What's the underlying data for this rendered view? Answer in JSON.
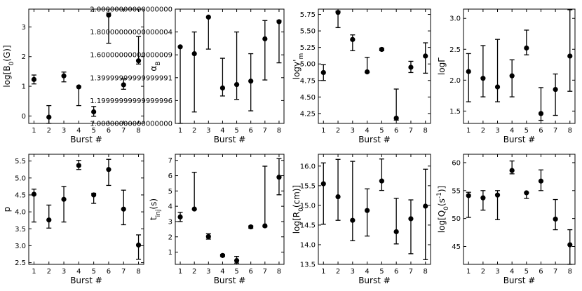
{
  "chart_data": [
    {
      "type": "scatter",
      "ylabel": "log[B$_0$(G)]",
      "xlabel": "Burst #",
      "ylim": [
        -0.25,
        3.6
      ],
      "yticks": [
        0,
        1,
        2,
        3
      ],
      "x": [
        1,
        2,
        3,
        4,
        5,
        6,
        7,
        8
      ],
      "y": [
        1.23,
        -0.04,
        1.35,
        0.98,
        0.14,
        3.4,
        1.05,
        1.86
      ],
      "y_low": [
        1.08,
        -0.25,
        1.15,
        0.35,
        -0.01,
        2.45,
        0.9,
        1.75
      ],
      "y_high": [
        1.38,
        0.35,
        1.48,
        1.0,
        0.32,
        3.47,
        1.25,
        2.68
      ]
    },
    {
      "type": "scatter",
      "ylabel": "α$_B$",
      "xlabel": "Burst #",
      "ylim": [
        1.0,
        2.0
      ],
      "yticks": [
        1.0,
        1.2,
        1.4,
        1.6,
        1.8,
        2.0
      ],
      "x": [
        1,
        2,
        3,
        4,
        5,
        6,
        7,
        8
      ],
      "y": [
        1.67,
        1.61,
        1.93,
        1.31,
        1.34,
        1.37,
        1.74,
        1.89
      ],
      "y_low": [
        1.0,
        1.1,
        1.65,
        1.24,
        1.21,
        1.11,
        1.38,
        1.53
      ],
      "y_high": [
        1.67,
        1.8,
        1.93,
        1.57,
        1.8,
        1.61,
        1.9,
        1.9
      ]
    },
    {
      "type": "scatter",
      "ylabel": "logγ'$_m$",
      "xlabel": "Burst #",
      "ylim": [
        4.1,
        5.83
      ],
      "yticks": [
        4.25,
        4.5,
        4.75,
        5.0,
        5.25,
        5.5,
        5.75
      ],
      "x": [
        1,
        2,
        3,
        4,
        5,
        6,
        7,
        8
      ],
      "y": [
        4.87,
        5.78,
        5.37,
        4.88,
        5.22,
        4.18,
        4.95,
        5.12
      ],
      "y_low": [
        4.75,
        5.55,
        5.2,
        4.87,
        5.2,
        4.15,
        4.87,
        4.86
      ],
      "y_high": [
        4.99,
        5.8,
        5.44,
        5.1,
        5.24,
        4.62,
        5.04,
        5.32
      ]
    },
    {
      "type": "scatter",
      "ylabel": "logΓ",
      "xlabel": "Burst #",
      "ylim": [
        1.3,
        3.15
      ],
      "yticks": [
        1.5,
        2.0,
        2.5,
        3.0
      ],
      "x": [
        1,
        2,
        3,
        4,
        5,
        6,
        7,
        8
      ],
      "y": [
        2.14,
        2.03,
        1.89,
        2.07,
        2.52,
        1.46,
        1.85,
        2.39
      ],
      "y_low": [
        1.65,
        1.73,
        1.65,
        1.73,
        2.41,
        1.35,
        1.43,
        1.82
      ],
      "y_high": [
        2.43,
        2.56,
        2.66,
        2.33,
        2.81,
        1.88,
        2.1,
        3.14
      ]
    },
    {
      "type": "scatter",
      "ylabel": "p",
      "xlabel": "Burst #",
      "ylim": [
        2.45,
        5.7
      ],
      "yticks": [
        2.5,
        3.0,
        3.5,
        4.0,
        4.5,
        5.0,
        5.5
      ],
      "x": [
        1,
        2,
        3,
        4,
        5,
        6,
        7,
        8
      ],
      "y": [
        4.52,
        3.76,
        4.37,
        5.37,
        4.5,
        5.25,
        4.08,
        3.02
      ],
      "y_low": [
        3.7,
        3.52,
        3.7,
        5.25,
        4.25,
        4.78,
        3.62,
        2.6
      ],
      "y_high": [
        4.67,
        4.2,
        4.75,
        5.52,
        4.55,
        5.55,
        4.64,
        3.32
      ]
    },
    {
      "type": "scatter",
      "ylabel": "t$_{inj}$(s)",
      "xlabel": "Burst #",
      "ylim": [
        0.2,
        7.4
      ],
      "yticks": [
        1,
        2,
        3,
        4,
        5,
        6,
        7
      ],
      "x": [
        1,
        2,
        3,
        4,
        5,
        6,
        7,
        8
      ],
      "y": [
        3.3,
        3.82,
        2.02,
        0.78,
        0.45,
        2.65,
        2.72,
        5.9
      ],
      "y_low": [
        3.0,
        3.8,
        1.85,
        0.72,
        0.28,
        2.56,
        2.65,
        4.75
      ],
      "y_high": [
        3.6,
        6.22,
        2.2,
        0.85,
        0.72,
        2.72,
        6.62,
        7.12
      ]
    },
    {
      "type": "scatter",
      "ylabel": "log[R$_0$(cm)]",
      "xlabel": "Burst #",
      "ylim": [
        13.5,
        16.3
      ],
      "yticks": [
        13.5,
        14.0,
        14.5,
        15.0,
        15.5,
        16.0
      ],
      "x": [
        1,
        2,
        3,
        4,
        5,
        6,
        7,
        8
      ],
      "y": [
        15.55,
        15.22,
        14.62,
        14.87,
        15.62,
        14.33,
        14.66,
        14.98
      ],
      "y_low": [
        14.52,
        14.62,
        14.1,
        14.22,
        15.38,
        14.02,
        13.77,
        13.62
      ],
      "y_high": [
        16.08,
        16.17,
        16.12,
        15.42,
        16.18,
        15.18,
        15.14,
        15.92
      ]
    },
    {
      "type": "scatter",
      "ylabel": "log[Q$_0$(s$^{-1}$)]",
      "xlabel": "Burst #",
      "ylim": [
        41.8,
        61.5
      ],
      "yticks": [
        45,
        50,
        55,
        60
      ],
      "x": [
        1,
        2,
        3,
        4,
        5,
        6,
        7,
        8
      ],
      "y": [
        54.1,
        53.7,
        54.2,
        58.6,
        54.6,
        56.7,
        49.9,
        45.3
      ],
      "y_low": [
        50.2,
        51.5,
        49.8,
        58.0,
        53.6,
        55.0,
        48.0,
        41.8
      ],
      "y_high": [
        54.7,
        55.0,
        55.0,
        60.3,
        54.7,
        58.7,
        53.4,
        48.0
      ]
    }
  ]
}
